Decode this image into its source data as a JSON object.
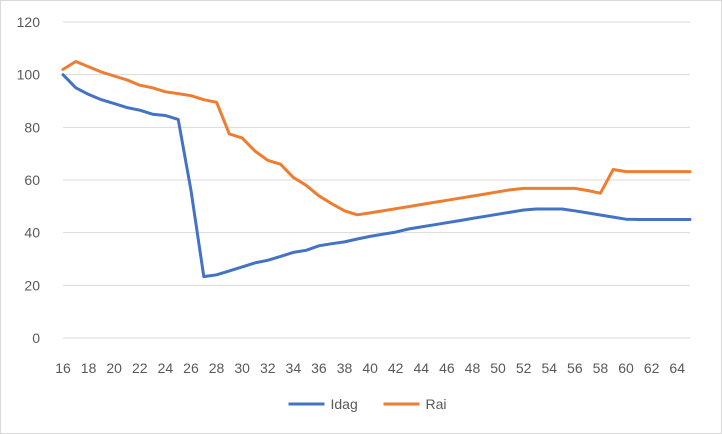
{
  "chart_data": {
    "type": "line",
    "title": "",
    "xlabel": "",
    "ylabel": "",
    "ylim": [
      0,
      120
    ],
    "yticks": [
      0,
      20,
      40,
      60,
      80,
      100,
      120
    ],
    "xlim": [
      16,
      65
    ],
    "xticks": [
      16,
      18,
      20,
      22,
      24,
      26,
      28,
      30,
      32,
      34,
      36,
      38,
      40,
      42,
      44,
      46,
      48,
      50,
      52,
      54,
      56,
      58,
      60,
      62,
      64
    ],
    "grid": "horizontal",
    "legend_position": "bottom",
    "x": [
      16,
      17,
      18,
      19,
      20,
      21,
      22,
      23,
      24,
      25,
      26,
      27,
      28,
      29,
      30,
      31,
      32,
      33,
      34,
      35,
      36,
      37,
      38,
      39,
      40,
      41,
      42,
      43,
      44,
      45,
      46,
      47,
      48,
      49,
      50,
      51,
      52,
      53,
      54,
      55,
      56,
      57,
      58,
      59,
      60,
      61,
      62,
      63,
      64,
      65
    ],
    "series": [
      {
        "name": "Idag",
        "color": "#4472c4",
        "values": [
          100,
          95,
          92.5,
          90.5,
          89,
          87.5,
          86.5,
          85,
          84.5,
          83,
          56,
          23.3,
          24,
          25.5,
          27,
          28.5,
          29.5,
          31,
          32.5,
          33.3,
          35,
          35.8,
          36.5,
          37.6,
          38.6,
          39.4,
          40.2,
          41.4,
          42.2,
          43,
          43.8,
          44.6,
          45.4,
          46.2,
          47,
          47.8,
          48.6,
          49,
          49,
          49,
          48.3,
          47.5,
          46.7,
          45.9,
          45.1,
          45,
          45,
          45,
          45,
          45
        ]
      },
      {
        "name": "Rai",
        "color": "#ed7d31",
        "values": [
          102,
          105,
          103,
          101,
          99.5,
          98,
          96,
          95,
          93.5,
          92.8,
          92,
          90.5,
          89.5,
          77.5,
          76,
          71,
          67.5,
          66,
          61,
          58,
          54,
          51,
          48.3,
          46.8,
          47.5,
          48.3,
          49.1,
          49.9,
          50.7,
          51.5,
          52.3,
          53.1,
          53.9,
          54.7,
          55.5,
          56.3,
          56.8,
          56.8,
          56.8,
          56.8,
          56.8,
          56,
          55,
          64,
          63.2,
          63.2,
          63.2,
          63.2,
          63.2,
          63.2
        ]
      }
    ]
  }
}
